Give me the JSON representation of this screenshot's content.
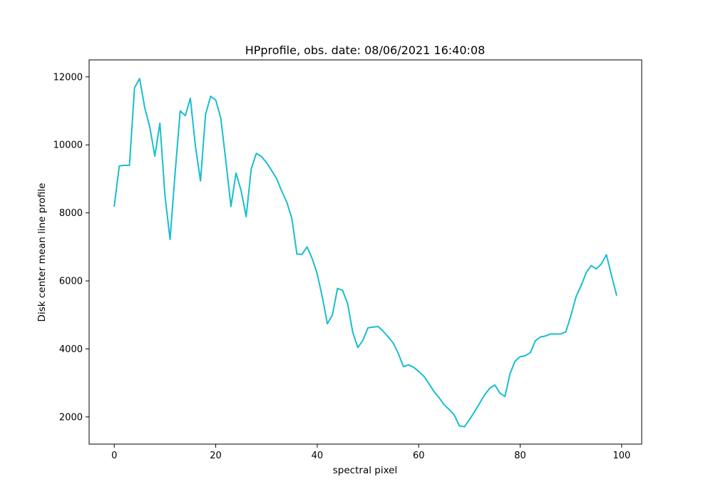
{
  "chart_data": {
    "type": "line",
    "title": "HPprofile, obs. date: 08/06/2021 16:40:08",
    "xlabel": "spectral pixel",
    "ylabel": "Disk center mean line profile",
    "xlim": [
      -4.95,
      103.95
    ],
    "ylim": [
      1200,
      12500
    ],
    "xticks": [
      0,
      20,
      40,
      60,
      80,
      100
    ],
    "yticks": [
      2000,
      4000,
      6000,
      8000,
      10000,
      12000
    ],
    "xtick_labels": [
      "0",
      "20",
      "40",
      "60",
      "80",
      "100"
    ],
    "ytick_labels": [
      "2000",
      "4000",
      "6000",
      "8000",
      "10000",
      "12000"
    ],
    "grid": false,
    "colors": {
      "line": "#17becf"
    },
    "series": [
      {
        "x": [
          0,
          1,
          2,
          3,
          4,
          5,
          6,
          7,
          8,
          9,
          10,
          11,
          12,
          13,
          14,
          15,
          16,
          17,
          18,
          19,
          20,
          21,
          22,
          23,
          24,
          25,
          26,
          27,
          28,
          29,
          30,
          31,
          32,
          33,
          34,
          35,
          36,
          37,
          38,
          39,
          40,
          41,
          42,
          43,
          44,
          45,
          46,
          47,
          48,
          49,
          50,
          51,
          52,
          53,
          54,
          55,
          56,
          57,
          58,
          59,
          60,
          61,
          62,
          63,
          64,
          65,
          66,
          67,
          68,
          69,
          70,
          71,
          72,
          73,
          74,
          75,
          76,
          77,
          78,
          79,
          80,
          81,
          82,
          83,
          84,
          85,
          86,
          87,
          88,
          89,
          90,
          91,
          92,
          93,
          94,
          95,
          96,
          97,
          98,
          99
        ],
        "values": [
          8200,
          9380,
          9400,
          9400,
          11680,
          11950,
          11100,
          10530,
          9670,
          10640,
          8500,
          7220,
          9180,
          11000,
          10860,
          11370,
          9960,
          8940,
          10900,
          11430,
          11320,
          10780,
          9520,
          8190,
          9170,
          8660,
          7890,
          9300,
          9750,
          9660,
          9480,
          9250,
          9010,
          8640,
          8320,
          7840,
          6790,
          6780,
          7000,
          6660,
          6210,
          5530,
          4740,
          5000,
          5780,
          5720,
          5330,
          4490,
          4040,
          4250,
          4620,
          4640,
          4660,
          4520,
          4350,
          4170,
          3860,
          3480,
          3530,
          3460,
          3340,
          3200,
          2980,
          2750,
          2570,
          2360,
          2220,
          2060,
          1740,
          1710,
          1920,
          2150,
          2400,
          2650,
          2840,
          2940,
          2700,
          2600,
          3270,
          3640,
          3770,
          3800,
          3890,
          4240,
          4350,
          4380,
          4440,
          4440,
          4440,
          4500,
          4980,
          5530,
          5860,
          6240,
          6450,
          6350,
          6500,
          6770,
          6160,
          5580
        ]
      }
    ]
  }
}
